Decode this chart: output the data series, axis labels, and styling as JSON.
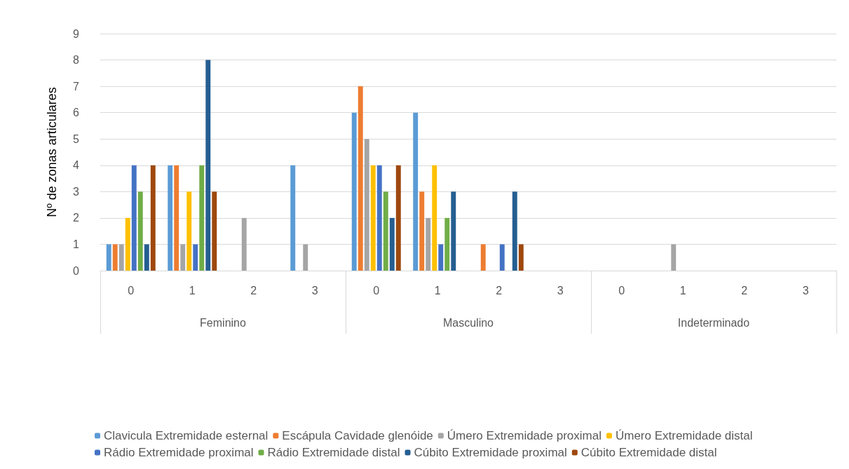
{
  "chart_data": {
    "type": "bar",
    "ylabel": "Nº de zonas articulares",
    "categories": [
      "0",
      "1",
      "2",
      "3",
      "0",
      "1",
      "2",
      "3",
      "0",
      "1",
      "2",
      "3"
    ],
    "annotations": [
      "Feminino",
      "Masculino",
      "Indeterminado"
    ],
    "series": [
      {
        "name": "Clavicula Extremidade esternal",
        "color": "#5b9bd5",
        "values": [
          1,
          4,
          0,
          4,
          6,
          6,
          0,
          0,
          0,
          0,
          0,
          0
        ]
      },
      {
        "name": "Escápula Cavidade glenóide",
        "color": "#ed7d31",
        "values": [
          1,
          4,
          0,
          0,
          7,
          3,
          1,
          0,
          0,
          0,
          0,
          0
        ]
      },
      {
        "name": "Úmero Extremidade proximal",
        "color": "#a5a5a5",
        "values": [
          1,
          1,
          2,
          1,
          5,
          2,
          0,
          0,
          0,
          1,
          0,
          0
        ]
      },
      {
        "name": "Úmero Extremidade distal",
        "color": "#ffc000",
        "values": [
          2,
          3,
          0,
          0,
          4,
          4,
          0,
          0,
          0,
          0,
          0,
          0
        ]
      },
      {
        "name": "Rádio Extremidade proximal",
        "color": "#4472c4",
        "values": [
          4,
          1,
          0,
          0,
          4,
          1,
          1,
          0,
          0,
          0,
          0,
          0
        ]
      },
      {
        "name": "Rádio Extremidade distal",
        "color": "#70ad47",
        "values": [
          3,
          4,
          0,
          0,
          3,
          2,
          0,
          0,
          0,
          0,
          0,
          0
        ]
      },
      {
        "name": "Cúbito Extremidade proximal",
        "color": "#255e91",
        "values": [
          1,
          8,
          0,
          0,
          2,
          3,
          3,
          0,
          0,
          0,
          0,
          0
        ]
      },
      {
        "name": "Cúbito Extremidade distal",
        "color": "#9e480e",
        "values": [
          4,
          3,
          0,
          0,
          4,
          0,
          1,
          0,
          0,
          0,
          0,
          0
        ]
      }
    ],
    "ylim": [
      0,
      9
    ],
    "yticks": [
      0,
      1,
      2,
      3,
      4,
      5,
      6,
      7,
      8,
      9
    ],
    "grid": "y",
    "legend": "bottom"
  }
}
